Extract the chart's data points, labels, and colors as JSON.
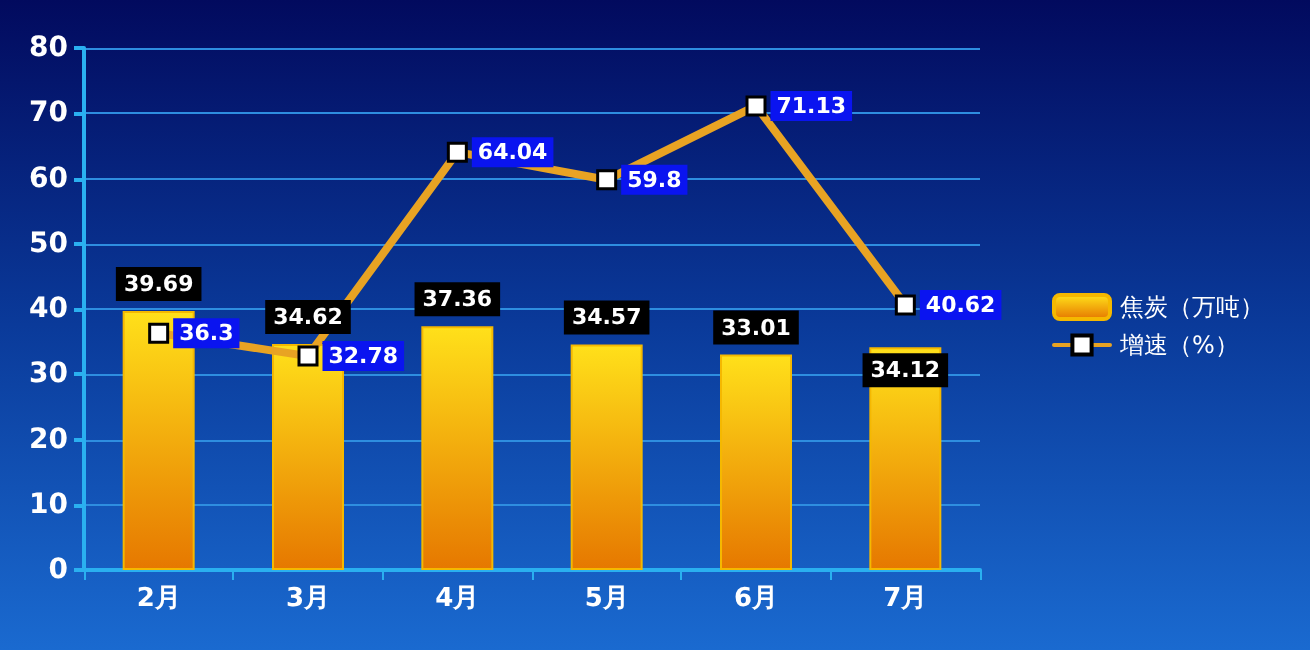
{
  "chart_data": {
    "type": "bar",
    "categories": [
      "2月",
      "3月",
      "4月",
      "5月",
      "6月",
      "7月"
    ],
    "series": [
      {
        "name": "焦炭（万吨）",
        "type": "bar",
        "color": "#f5b800",
        "values": [
          39.69,
          34.62,
          37.36,
          34.57,
          33.01,
          34.12
        ]
      },
      {
        "name": "增速（%）",
        "type": "line",
        "color": "#e8a323",
        "values": [
          36.3,
          32.78,
          64.04,
          59.8,
          71.13,
          40.62
        ]
      }
    ],
    "ylim": [
      0,
      80
    ],
    "yticks": [
      0,
      10,
      20,
      30,
      40,
      50,
      60,
      70,
      80
    ],
    "grid": "y",
    "legend": "right",
    "marker": "square",
    "line_style": "solid",
    "data_labels": true
  }
}
